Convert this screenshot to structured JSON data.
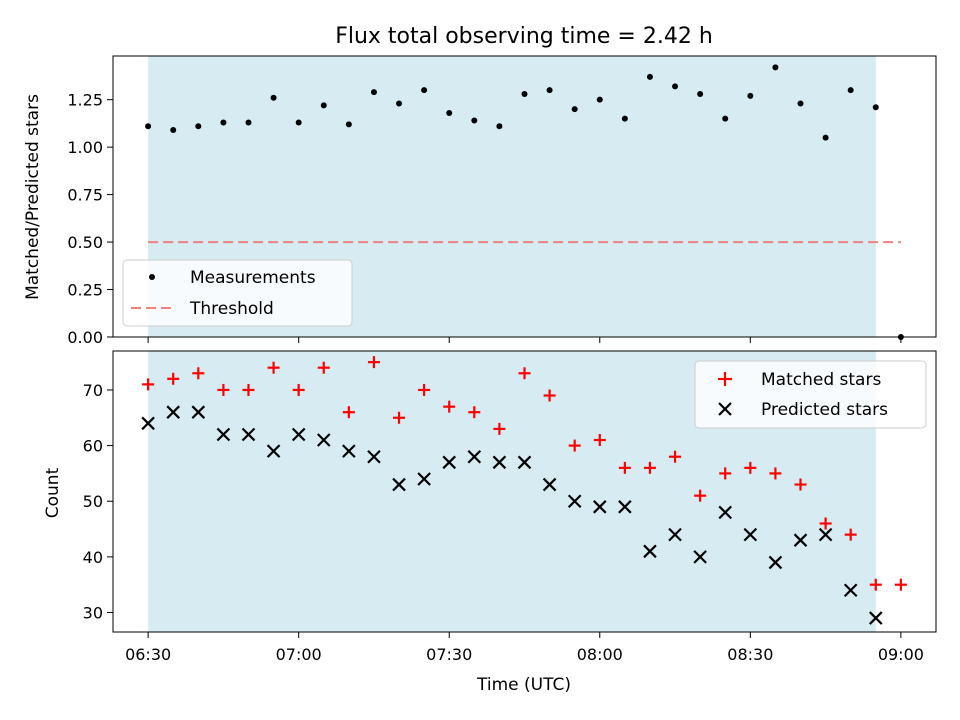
{
  "chart_data": [
    {
      "type": "scatter",
      "title": "Flux total observing time = 2.42 h",
      "xlabel": "",
      "ylabel": "Matched/Predicted stars",
      "ylim": [
        0.0,
        1.48
      ],
      "yticks": [
        0.0,
        0.25,
        0.5,
        0.75,
        1.0,
        1.25
      ],
      "ytick_labels": [
        "0.00",
        "0.25",
        "0.50",
        "0.75",
        "1.00",
        "1.25"
      ],
      "xlim": [
        "06:23",
        "09:07"
      ],
      "shaded_span": {
        "start": "06:30",
        "end": "08:55",
        "color": "#add8e6"
      },
      "threshold": {
        "y": 0.5,
        "x_start": "06:30",
        "x_end": "09:00",
        "color": "#f08080",
        "style": "dashed"
      },
      "legend": {
        "location": "lower-left",
        "entries": [
          "Measurements",
          "Threshold"
        ]
      },
      "series": [
        {
          "name": "Measurements",
          "color": "#000000",
          "marker": "dot",
          "x": [
            "06:30",
            "06:35",
            "06:40",
            "06:45",
            "06:50",
            "06:55",
            "07:00",
            "07:05",
            "07:10",
            "07:15",
            "07:20",
            "07:25",
            "07:30",
            "07:35",
            "07:40",
            "07:45",
            "07:50",
            "07:55",
            "08:00",
            "08:05",
            "08:10",
            "08:15",
            "08:20",
            "08:25",
            "08:30",
            "08:35",
            "08:40",
            "08:45",
            "08:50",
            "08:55",
            "09:00"
          ],
          "y": [
            1.11,
            1.09,
            1.11,
            1.13,
            1.13,
            1.26,
            1.13,
            1.22,
            1.12,
            1.29,
            1.23,
            1.3,
            1.18,
            1.14,
            1.11,
            1.28,
            1.3,
            1.2,
            1.25,
            1.15,
            1.37,
            1.32,
            1.28,
            1.15,
            1.27,
            1.42,
            1.23,
            1.05,
            1.3,
            1.21,
            0.0
          ]
        }
      ]
    },
    {
      "type": "scatter",
      "title": "",
      "xlabel": "Time (UTC)",
      "ylabel": "Count",
      "ylim": [
        26.5,
        77
      ],
      "yticks": [
        30,
        40,
        50,
        60,
        70
      ],
      "ytick_labels": [
        "30",
        "40",
        "50",
        "60",
        "70"
      ],
      "xlim": [
        "06:23",
        "09:07"
      ],
      "xticks": [
        "06:30",
        "07:00",
        "07:30",
        "08:00",
        "08:30",
        "09:00"
      ],
      "xtick_labels": [
        "06:30",
        "07:00",
        "07:30",
        "08:00",
        "08:30",
        "09:00"
      ],
      "shaded_span": {
        "start": "06:30",
        "end": "08:55",
        "color": "#add8e6"
      },
      "legend": {
        "location": "upper-right",
        "entries": [
          "Matched stars",
          "Predicted stars"
        ]
      },
      "series": [
        {
          "name": "Matched stars",
          "color": "#ff0000",
          "marker": "plus",
          "x": [
            "06:30",
            "06:35",
            "06:40",
            "06:45",
            "06:50",
            "06:55",
            "07:00",
            "07:05",
            "07:10",
            "07:15",
            "07:20",
            "07:25",
            "07:30",
            "07:35",
            "07:40",
            "07:45",
            "07:50",
            "07:55",
            "08:00",
            "08:05",
            "08:10",
            "08:15",
            "08:20",
            "08:25",
            "08:30",
            "08:35",
            "08:40",
            "08:45",
            "08:50",
            "08:55",
            "09:00"
          ],
          "y": [
            71,
            72,
            73,
            70,
            70,
            74,
            70,
            74,
            66,
            75,
            65,
            70,
            67,
            66,
            63,
            73,
            69,
            60,
            61,
            56,
            56,
            58,
            51,
            55,
            56,
            55,
            53,
            46,
            44,
            35,
            35
          ]
        },
        {
          "name": "Predicted stars",
          "color": "#000000",
          "marker": "x",
          "x": [
            "06:30",
            "06:35",
            "06:40",
            "06:45",
            "06:50",
            "06:55",
            "07:00",
            "07:05",
            "07:10",
            "07:15",
            "07:20",
            "07:25",
            "07:30",
            "07:35",
            "07:40",
            "07:45",
            "07:50",
            "07:55",
            "08:00",
            "08:05",
            "08:10",
            "08:15",
            "08:20",
            "08:25",
            "08:30",
            "08:35",
            "08:40",
            "08:45",
            "08:50",
            "08:55"
          ],
          "y": [
            64,
            66,
            66,
            62,
            62,
            59,
            62,
            61,
            59,
            58,
            53,
            54,
            57,
            58,
            57,
            57,
            53,
            50,
            49,
            49,
            41,
            44,
            40,
            48,
            44,
            39,
            43,
            44,
            34,
            29
          ]
        }
      ]
    }
  ]
}
